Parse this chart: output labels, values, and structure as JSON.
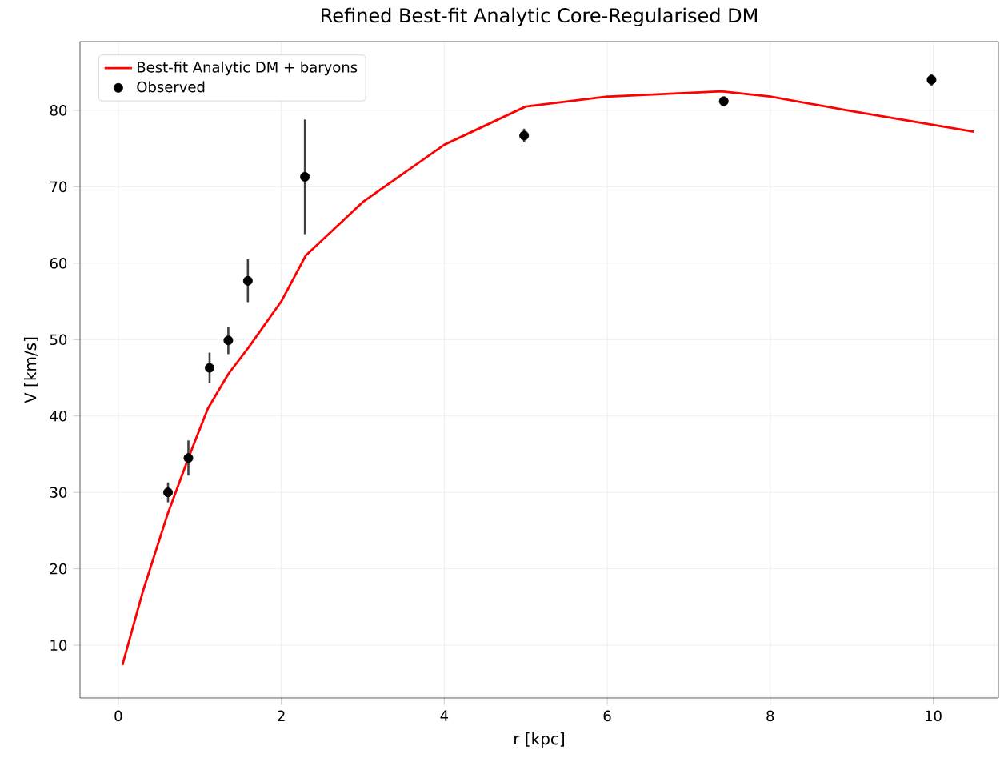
{
  "chart_data": {
    "type": "scatter",
    "title": "Refined Best-fit Analytic Core-Regularised DM",
    "xlabel": "r [kpc]",
    "ylabel": "V [km/s]",
    "xlim": [
      -0.47,
      10.8
    ],
    "ylim": [
      3.1,
      89
    ],
    "xticks": [
      0,
      2,
      4,
      6,
      8,
      10
    ],
    "yticks": [
      10,
      20,
      30,
      40,
      50,
      60,
      70,
      80
    ],
    "grid": true,
    "legend": "top left",
    "series": [
      {
        "name": "Best-fit Analytic DM + baryons",
        "type": "line",
        "color": "#ff0000",
        "marker": "none",
        "line_style": "solid",
        "x": [
          0.05,
          0.3,
          0.6,
          0.86,
          1.1,
          1.35,
          1.6,
          2.0,
          2.3,
          3.0,
          4.0,
          5.0,
          6.0,
          7.4,
          8.0,
          9.0,
          10.5
        ],
        "values": [
          7.4,
          17,
          27,
          34.5,
          41,
          45.5,
          49,
          55,
          61,
          68,
          75.5,
          80.5,
          81.8,
          82.5,
          81.8,
          79.9,
          77.2
        ]
      },
      {
        "name": "Observed",
        "color": "#000000",
        "marker": "circle",
        "x": [
          0.61,
          0.86,
          1.12,
          1.35,
          1.59,
          2.29,
          4.98,
          7.43,
          9.98
        ],
        "values": [
          30,
          34.5,
          46.3,
          49.9,
          57.7,
          71.3,
          76.7,
          81.2,
          84
        ],
        "errors": [
          1.3,
          2.3,
          2,
          1.8,
          2.8,
          7.5,
          0.9,
          0.5,
          0.8
        ]
      }
    ]
  }
}
